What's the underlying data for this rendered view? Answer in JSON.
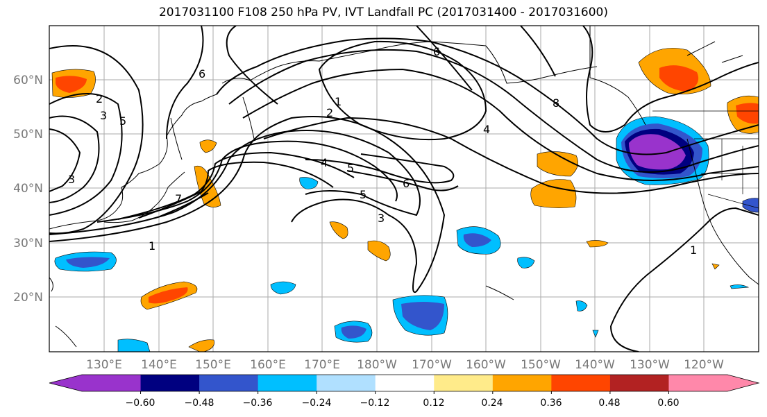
{
  "title": "2017031100 F108 250 hPa PV, IVT Landfall PC (2017031400 - 2017031600)",
  "lat_labels": [
    "60°N",
    "50°N",
    "40°N",
    "30°N",
    "20°N"
  ],
  "lon_labels": [
    "130°E",
    "140°E",
    "150°E",
    "160°E",
    "170°E",
    "180°W",
    "170°W",
    "160°W",
    "150°W",
    "140°W",
    "130°W",
    "120°W"
  ],
  "contour_labels": [
    "1",
    "2",
    "3",
    "4",
    "5",
    "6",
    "7",
    "8",
    "1",
    "2",
    "3",
    "4",
    "5",
    "6",
    "1",
    "2",
    "3",
    "5"
  ],
  "colorbar": {
    "colors": [
      "#9933cc",
      "#000080",
      "#3355cc",
      "#00bfff",
      "#b0e0ff",
      "#ffffff",
      "#ffeb8a",
      "#ffa500",
      "#ff4500",
      "#b22222",
      "#ff88aa"
    ],
    "tick_labels": [
      "−0.60",
      "−0.48",
      "−0.36",
      "−0.24",
      "−0.12",
      "0.12",
      "0.24",
      "0.36",
      "0.48",
      "0.60"
    ]
  }
}
